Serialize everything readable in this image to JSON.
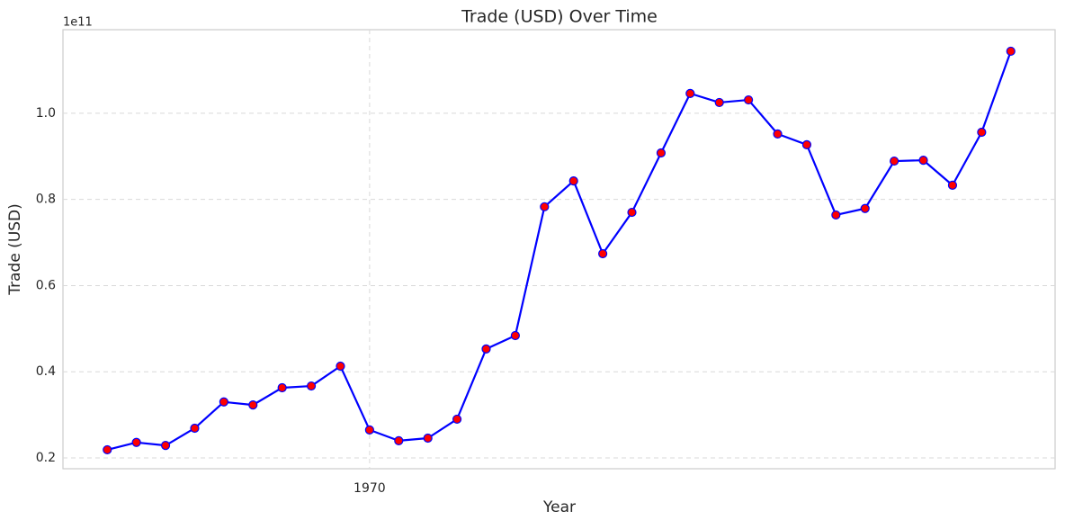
{
  "chart_data": {
    "type": "line",
    "title": "Trade (USD) Over Time",
    "x_label": "Year",
    "y_label": "Trade (USD)",
    "y_offset_label": "1e11",
    "x": [
      1961,
      1962,
      1963,
      1964,
      1965,
      1966,
      1967,
      1968,
      1969,
      1970,
      1971,
      1972,
      1973,
      1974,
      1975,
      1976,
      1977,
      1978,
      1979,
      1980,
      1981,
      1982,
      1983,
      1984,
      1985,
      1986,
      1987,
      1988,
      1989,
      1990,
      1991,
      1992
    ],
    "series": [
      {
        "name": "Trade (USD)",
        "color": "#0000ff",
        "marker_color": "#ff0000",
        "values": [
          0.219,
          0.236,
          0.229,
          0.269,
          0.33,
          0.323,
          0.363,
          0.367,
          0.413,
          0.265,
          0.24,
          0.246,
          0.29,
          0.453,
          0.484,
          0.783,
          0.843,
          0.674,
          0.77,
          0.908,
          1.046,
          1.025,
          1.031,
          0.952,
          0.927,
          0.764,
          0.779,
          0.889,
          0.891,
          0.833,
          0.956,
          1.144
        ]
      }
    ],
    "xlim": [
      1959.48,
      1993.52
    ],
    "xticks": [
      1970
    ],
    "ylim": [
      0.175,
      1.194
    ],
    "yticks": [
      0.2,
      0.4,
      0.6,
      0.8,
      {
        "value": 1.0,
        "label": "1.0"
      }
    ],
    "grid": true
  }
}
